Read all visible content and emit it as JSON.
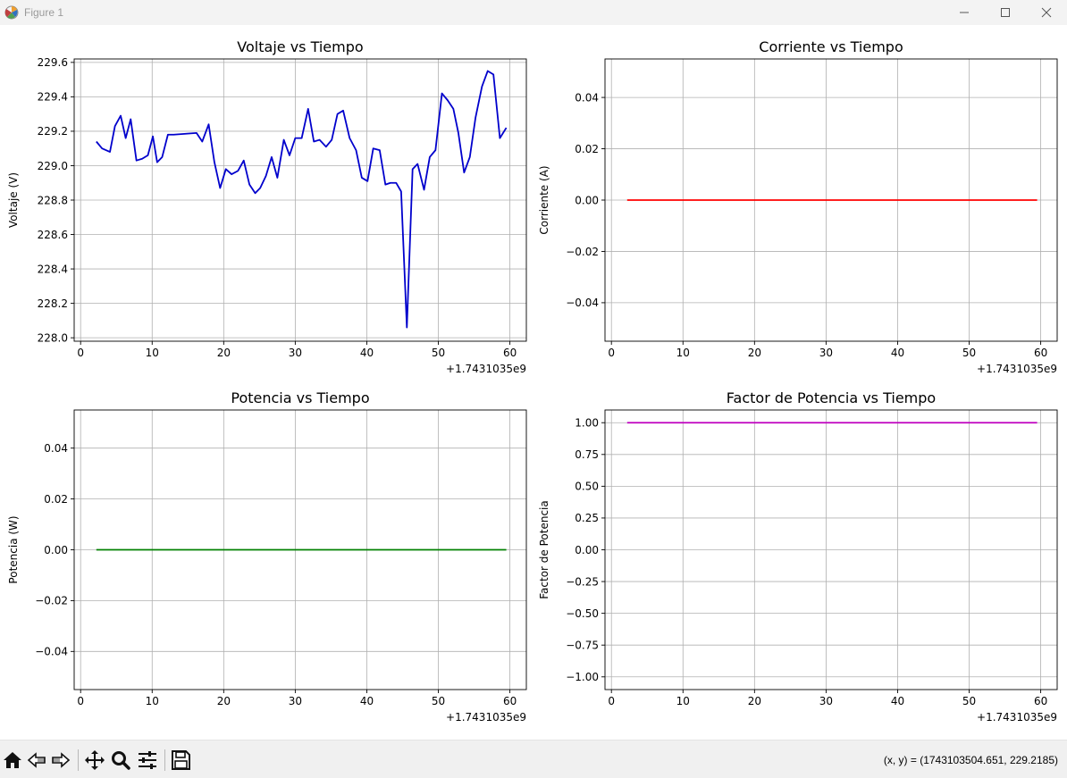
{
  "window": {
    "title": "Figure 1",
    "controls": [
      "minimize-icon",
      "maximize-icon",
      "close-icon"
    ]
  },
  "toolbar": {
    "tools": [
      "home-icon",
      "back-icon",
      "forward-icon",
      "pan-icon",
      "zoom-icon",
      "configure-subplots-icon",
      "save-icon"
    ],
    "coords": "(x, y) = (1743103504.651, 229.2185)"
  },
  "chart_data": [
    {
      "type": "line",
      "title": "Voltaje vs Tiempo",
      "xlabel": "",
      "ylabel": "Voltaje (V)",
      "x_offset_label": "+1.7431035e9",
      "xlim": [
        -0.9,
        62.3
      ],
      "ylim": [
        227.98,
        229.62
      ],
      "xticks": [
        0,
        10,
        20,
        30,
        40,
        50,
        60
      ],
      "yticks": [
        228.0,
        228.2,
        228.4,
        228.6,
        228.8,
        229.0,
        229.2,
        229.4,
        229.6
      ],
      "ytick_labels": [
        "228.0",
        "228.2",
        "228.4",
        "228.6",
        "228.8",
        "229.0",
        "229.2",
        "229.4",
        "229.6"
      ],
      "grid": true,
      "color": "#0000cc",
      "series": [
        {
          "x": [
            2.2,
            3.0,
            4.1,
            4.8,
            5.6,
            6.3,
            7.0,
            7.8,
            8.6,
            9.4,
            10.1,
            10.7,
            11.4,
            12.2,
            13.0,
            16.2,
            17.0,
            17.9,
            18.7,
            19.5,
            20.3,
            21.1,
            22.0,
            22.8,
            23.6,
            24.4,
            25.1,
            25.9,
            26.7,
            27.5,
            28.4,
            29.2,
            30.0,
            30.9,
            31.8,
            32.6,
            33.4,
            34.3,
            35.1,
            35.9,
            36.7,
            37.6,
            38.5,
            39.3,
            40.1,
            40.9,
            41.8,
            42.6,
            43.3,
            44.1,
            44.8,
            45.6,
            46.4,
            47.1,
            48.0,
            48.8,
            49.6,
            50.5,
            51.3,
            52.1,
            52.8,
            53.6,
            54.4,
            55.2,
            56.1,
            56.9,
            57.7,
            58.6,
            59.5
          ],
          "y": [
            229.14,
            229.1,
            229.08,
            229.23,
            229.29,
            229.16,
            229.27,
            229.03,
            229.04,
            229.06,
            229.17,
            229.02,
            229.05,
            229.18,
            229.18,
            229.19,
            229.14,
            229.24,
            229.02,
            228.87,
            228.98,
            228.95,
            228.97,
            229.03,
            228.89,
            228.84,
            228.87,
            228.94,
            229.05,
            228.93,
            229.15,
            229.06,
            229.16,
            229.16,
            229.33,
            229.14,
            229.15,
            229.11,
            229.15,
            229.3,
            229.32,
            229.16,
            229.09,
            228.93,
            228.91,
            229.1,
            229.09,
            228.89,
            228.9,
            228.9,
            228.85,
            228.06,
            228.98,
            229.01,
            228.86,
            229.05,
            229.09,
            229.42,
            229.38,
            229.33,
            229.19,
            228.96,
            229.05,
            229.28,
            229.46,
            229.55,
            229.53,
            229.16,
            229.22
          ]
        }
      ]
    },
    {
      "type": "line",
      "title": "Corriente vs Tiempo",
      "xlabel": "",
      "ylabel": "Corriente (A)",
      "x_offset_label": "+1.7431035e9",
      "xlim": [
        -0.9,
        62.3
      ],
      "ylim": [
        -0.055,
        0.055
      ],
      "xticks": [
        0,
        10,
        20,
        30,
        40,
        50,
        60
      ],
      "yticks": [
        -0.04,
        -0.02,
        0.0,
        0.02,
        0.04
      ],
      "ytick_labels": [
        "−0.04",
        "−0.02",
        "0.00",
        "0.02",
        "0.04"
      ],
      "grid": true,
      "color": "#ff0000",
      "series": [
        {
          "x": [
            2.2,
            59.5
          ],
          "y": [
            0.0,
            0.0
          ]
        }
      ]
    },
    {
      "type": "line",
      "title": "Potencia vs Tiempo",
      "xlabel": "",
      "ylabel": "Potencia (W)",
      "x_offset_label": "+1.7431035e9",
      "xlim": [
        -0.9,
        62.3
      ],
      "ylim": [
        -0.055,
        0.055
      ],
      "xticks": [
        0,
        10,
        20,
        30,
        40,
        50,
        60
      ],
      "yticks": [
        -0.04,
        -0.02,
        0.0,
        0.02,
        0.04
      ],
      "ytick_labels": [
        "−0.04",
        "−0.02",
        "0.00",
        "0.02",
        "0.04"
      ],
      "grid": true,
      "color": "#008000",
      "series": [
        {
          "x": [
            2.2,
            59.5
          ],
          "y": [
            0.0,
            0.0
          ]
        }
      ]
    },
    {
      "type": "line",
      "title": "Factor de Potencia vs Tiempo",
      "xlabel": "",
      "ylabel": "Factor de Potencia",
      "x_offset_label": "+1.7431035e9",
      "xlim": [
        -0.9,
        62.3
      ],
      "ylim": [
        -1.1,
        1.1
      ],
      "xticks": [
        0,
        10,
        20,
        30,
        40,
        50,
        60
      ],
      "yticks": [
        -1.0,
        -0.75,
        -0.5,
        -0.25,
        0.0,
        0.25,
        0.5,
        0.75,
        1.0
      ],
      "ytick_labels": [
        "−1.00",
        "−0.75",
        "−0.50",
        "−0.25",
        "0.00",
        "0.25",
        "0.50",
        "0.75",
        "1.00"
      ],
      "grid": true,
      "color": "#bf00bf",
      "series": [
        {
          "x": [
            2.2,
            59.5
          ],
          "y": [
            1.0,
            1.0
          ]
        }
      ]
    }
  ]
}
